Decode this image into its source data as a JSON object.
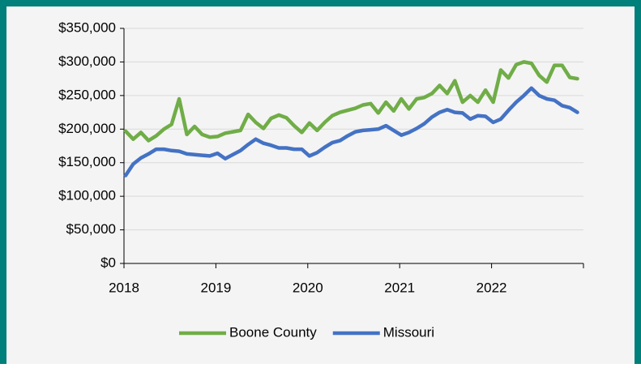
{
  "chart_data": {
    "type": "line",
    "categories": [
      "2018",
      null,
      null,
      null,
      null,
      null,
      null,
      null,
      null,
      null,
      null,
      null,
      "2019",
      null,
      null,
      null,
      null,
      null,
      null,
      null,
      null,
      null,
      null,
      null,
      "2020",
      null,
      null,
      null,
      null,
      null,
      null,
      null,
      null,
      null,
      null,
      null,
      "2021",
      null,
      null,
      null,
      null,
      null,
      null,
      null,
      null,
      null,
      null,
      null,
      "2022",
      null,
      null,
      null,
      null,
      null,
      null,
      null,
      null,
      null,
      null,
      null
    ],
    "series": [
      {
        "name": "Boone County",
        "color": "#70ad47",
        "values": [
          197000,
          185000,
          195000,
          183000,
          190000,
          200000,
          207000,
          245000,
          192000,
          204000,
          192000,
          188000,
          189000,
          194000,
          196000,
          198000,
          222000,
          210000,
          201000,
          216000,
          221000,
          217000,
          205000,
          195000,
          209000,
          198000,
          210000,
          220000,
          225000,
          228000,
          231000,
          236000,
          238000,
          224000,
          240000,
          227000,
          245000,
          230000,
          245000,
          247000,
          253000,
          265000,
          253000,
          272000,
          240000,
          250000,
          240000,
          258000,
          240000,
          288000,
          276000,
          296000,
          300000,
          298000,
          280000,
          270000,
          295000,
          295000,
          277000,
          275000
        ]
      },
      {
        "name": "Missouri",
        "color": "#4472c4",
        "values": [
          131000,
          148000,
          157000,
          163000,
          170000,
          170000,
          168000,
          167000,
          163000,
          162000,
          161000,
          160000,
          164000,
          156000,
          162000,
          168000,
          177000,
          185000,
          179000,
          176000,
          172000,
          172000,
          170000,
          170000,
          160000,
          165000,
          173000,
          180000,
          183000,
          190000,
          196000,
          198000,
          199000,
          200000,
          205000,
          198000,
          191000,
          195000,
          201000,
          208000,
          218000,
          225000,
          229000,
          225000,
          224000,
          215000,
          220000,
          219000,
          210000,
          215000,
          228000,
          240000,
          250000,
          261000,
          250000,
          245000,
          243000,
          235000,
          232000,
          225000
        ]
      }
    ],
    "ylim": [
      0,
      350000
    ],
    "yticks": [
      {
        "value": 0,
        "label": "$0"
      },
      {
        "value": 50000,
        "label": "$50,000"
      },
      {
        "value": 100000,
        "label": "$100,000"
      },
      {
        "value": 150000,
        "label": "$150,000"
      },
      {
        "value": 200000,
        "label": "$200,000"
      },
      {
        "value": 250000,
        "label": "$250,000"
      },
      {
        "value": 300000,
        "label": "$300,000"
      },
      {
        "value": 350000,
        "label": "$350,000"
      }
    ],
    "grid": true,
    "legend": "bottom"
  }
}
